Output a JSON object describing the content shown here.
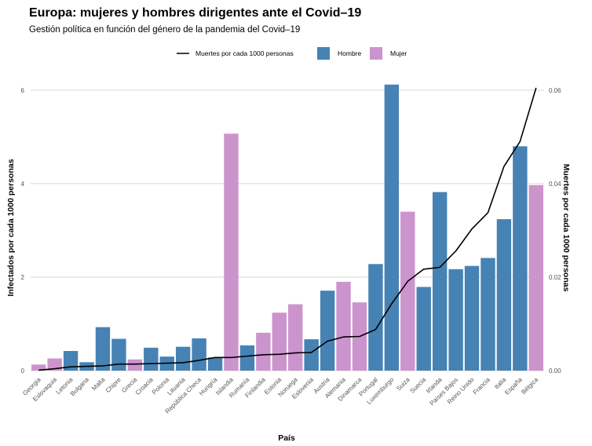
{
  "chart_data": {
    "type": "bar",
    "title": "Europa: mujeres y hombres dirigentes ante el Covid–19",
    "subtitle": "Gestión política en función del género de la pandemia del Covid–19",
    "xlabel": "País",
    "ylabel": "Infectados por cada 1000 personas",
    "ylabel_right": "Muertes por cada 1000 personas",
    "ylim": [
      0,
      6.3
    ],
    "ylim_right": [
      0,
      0.063
    ],
    "yticks": [
      "0",
      "2",
      "4",
      "6"
    ],
    "yticks_right": [
      "0.00",
      "0.02",
      "0.04",
      "0.06"
    ],
    "grid": true,
    "legend_position": "top",
    "colors": {
      "Hombre": "#4682b4",
      "Mujer": "#cc94cc",
      "line": "#000000"
    },
    "legend": {
      "line": "Muertes por cada 1000 personas",
      "bar1": "Hombre",
      "bar2": "Mujer"
    },
    "categories": [
      "Georgia",
      "Eslovaquia",
      "Letonia",
      "Bulgaria",
      "Malta",
      "Chipre",
      "Grecia",
      "Croacia",
      "Polonia",
      "Lituania",
      "República Checa",
      "Hungría",
      "Islandia",
      "Rumanía",
      "Finlandia",
      "Estonia",
      "Noruega",
      "Eslovenia",
      "Austria",
      "Alemania",
      "Dinamarca",
      "Portugal",
      "Luxemburgo",
      "Suiza",
      "Suecia",
      "Irlanda",
      "Países Bajos",
      "Reino Unido",
      "Francia",
      "Italia",
      "España",
      "Bélgica"
    ],
    "gender": [
      "Mujer",
      "Mujer",
      "Hombre",
      "Hombre",
      "Hombre",
      "Hombre",
      "Mujer",
      "Hombre",
      "Hombre",
      "Hombre",
      "Hombre",
      "Hombre",
      "Mujer",
      "Hombre",
      "Mujer",
      "Mujer",
      "Mujer",
      "Hombre",
      "Hombre",
      "Mujer",
      "Mujer",
      "Hombre",
      "Hombre",
      "Mujer",
      "Hombre",
      "Hombre",
      "Hombre",
      "Hombre",
      "Hombre",
      "Hombre",
      "Hombre",
      "Mujer"
    ],
    "series": [
      {
        "name": "Infectados por cada 1000 personas",
        "values": [
          0.13,
          0.26,
          0.42,
          0.18,
          0.93,
          0.68,
          0.24,
          0.49,
          0.3,
          0.51,
          0.69,
          0.28,
          5.07,
          0.54,
          0.81,
          1.24,
          1.42,
          0.67,
          1.71,
          1.9,
          1.46,
          2.28,
          6.12,
          3.4,
          1.79,
          3.82,
          2.17,
          2.24,
          2.41,
          3.24,
          4.8,
          3.97
        ]
      },
      {
        "name": "Muertes por cada 1000 personas",
        "values": [
          0.0001,
          0.0004,
          0.0008,
          0.0009,
          0.001,
          0.0014,
          0.0014,
          0.0015,
          0.0016,
          0.0017,
          0.0022,
          0.0028,
          0.0028,
          0.0031,
          0.0034,
          0.0035,
          0.0038,
          0.0039,
          0.0063,
          0.0072,
          0.0073,
          0.0088,
          0.0143,
          0.0191,
          0.0217,
          0.0221,
          0.0256,
          0.0303,
          0.0338,
          0.0437,
          0.049,
          0.0605
        ]
      }
    ]
  }
}
